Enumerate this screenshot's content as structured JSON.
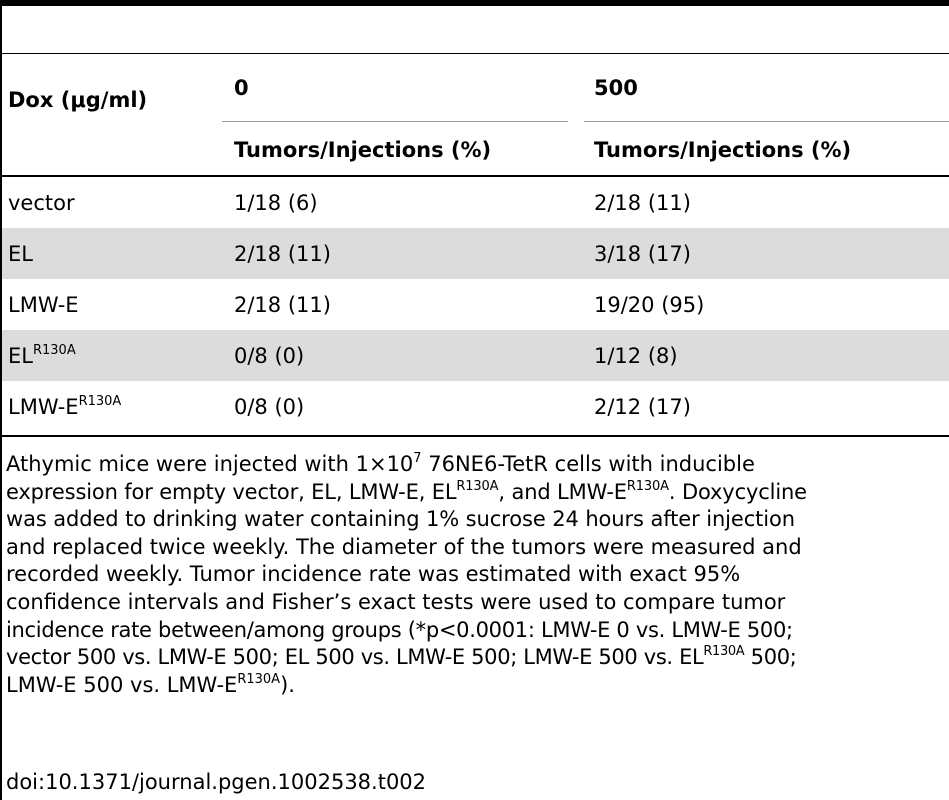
{
  "table": {
    "header": {
      "dox_label": "Dox (μg/ml)",
      "dose_0": "0",
      "dose_500": "500",
      "sub_0": "Tumors/Injections (%)",
      "sub_500": "Tumors/Injections (%)"
    },
    "rows": [
      {
        "label": "vector",
        "sup": "",
        "v0": "1/18 (6)",
        "v500": "2/18 (11)",
        "shaded": false
      },
      {
        "label": "EL",
        "sup": "",
        "v0": "2/18 (11)",
        "v500": "3/18 (17)",
        "shaded": true
      },
      {
        "label": "LMW-E",
        "sup": "",
        "v0": "2/18 (11)",
        "v500": "19/20 (95)",
        "shaded": false
      },
      {
        "label": "EL",
        "sup": "R130A",
        "v0": "0/8 (0)",
        "v500": "1/12 (8)",
        "shaded": true
      },
      {
        "label": "LMW-E",
        "sup": "R130A",
        "v0": "0/8 (0)",
        "v500": "2/12 (17)",
        "shaded": false
      }
    ]
  },
  "footnote": {
    "l1_a": "Athymic mice were injected with 1×10",
    "l1_sup": "7",
    "l1_b": " 76NE6-TetR cells with inducible",
    "l2_a": "expression for empty vector, EL, LMW-E, EL",
    "l2_sup1": "R130A",
    "l2_b": ", and LMW-E",
    "l2_sup2": "R130A",
    "l2_c": ". Doxycycline",
    "l3": "was added to drinking water containing 1% sucrose 24 hours after injection",
    "l4": "and replaced twice weekly. The diameter of the tumors were measured and",
    "l5": "recorded weekly. Tumor incidence rate was estimated with exact 95%",
    "l6": "confidence intervals and Fisher’s exact tests were used to compare tumor",
    "l7": "incidence rate between/among groups (*p<0.0001: LMW-E 0 vs. LMW-E 500;",
    "l8_a": "vector 500 vs. LMW-E 500; EL 500 vs. LMW-E 500; LMW-E 500 vs. EL",
    "l8_sup": "R130A",
    "l8_b": " 500;",
    "l9_a": "LMW-E 500 vs. LMW-E",
    "l9_sup": "R130A",
    "l9_b": ")."
  },
  "doi": "doi:10.1371/journal.pgen.1002538.t002"
}
